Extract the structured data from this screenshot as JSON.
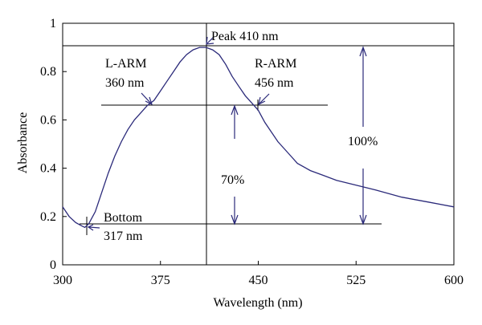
{
  "chart_data": {
    "type": "line",
    "xlabel": "Wavelength (nm)",
    "ylabel": "Absorbance",
    "xlim": [
      300,
      600
    ],
    "ylim": [
      0,
      1
    ],
    "x_ticks": [
      "300",
      "375",
      "450",
      "525",
      "600"
    ],
    "y_ticks": [
      "0",
      "0.2",
      "0.4",
      "0.6",
      "0.8",
      "1"
    ],
    "grid": false,
    "series": [
      {
        "color": "#2b2a7a",
        "x": [
          300,
          305,
          310,
          315,
          317,
          320,
          325,
          330,
          335,
          340,
          345,
          350,
          355,
          360,
          365,
          370,
          375,
          380,
          385,
          390,
          395,
          400,
          405,
          410,
          415,
          420,
          425,
          430,
          435,
          440,
          445,
          450,
          455,
          460,
          465,
          470,
          475,
          480,
          490,
          500,
          510,
          525,
          540,
          560,
          580,
          600
        ],
        "y": [
          0.24,
          0.2,
          0.175,
          0.16,
          0.155,
          0.17,
          0.22,
          0.3,
          0.38,
          0.45,
          0.51,
          0.56,
          0.6,
          0.63,
          0.66,
          0.68,
          0.72,
          0.76,
          0.8,
          0.84,
          0.87,
          0.89,
          0.9,
          0.9,
          0.89,
          0.87,
          0.83,
          0.78,
          0.74,
          0.7,
          0.67,
          0.64,
          0.59,
          0.55,
          0.51,
          0.48,
          0.45,
          0.42,
          0.39,
          0.37,
          0.35,
          0.33,
          0.31,
          0.28,
          0.26,
          0.24
        ]
      }
    ],
    "reference_lines": {
      "peak_y": 0.9,
      "half_y": 0.66,
      "bottom_y": 0.17,
      "peak_x": 410
    },
    "annotations": {
      "peak": "Peak 410 nm",
      "l_arm_title": "L-ARM",
      "l_arm_value": "360 nm",
      "r_arm_title": "R-ARM",
      "r_arm_value": "456 nm",
      "bottom_title": "Bottom",
      "bottom_value": "317 nm",
      "pct_100": "100%",
      "pct_70": "70%"
    }
  }
}
